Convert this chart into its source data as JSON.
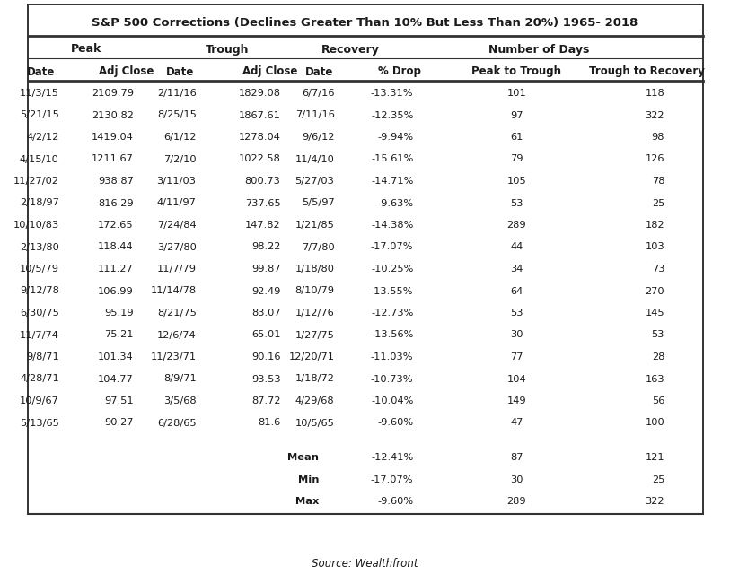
{
  "title": "S&P 500 Corrections (Declines Greater Than 10% But Less Than 20%) 1965- 2018",
  "source": "Source: Wealthfront",
  "rows": [
    [
      "11/3/15",
      "2109.79",
      "2/11/16",
      "1829.08",
      "6/7/16",
      "-13.31%",
      "101",
      "118"
    ],
    [
      "5/21/15",
      "2130.82",
      "8/25/15",
      "1867.61",
      "7/11/16",
      "-12.35%",
      "97",
      "322"
    ],
    [
      "4/2/12",
      "1419.04",
      "6/1/12",
      "1278.04",
      "9/6/12",
      "-9.94%",
      "61",
      "98"
    ],
    [
      "4/15/10",
      "1211.67",
      "7/2/10",
      "1022.58",
      "11/4/10",
      "-15.61%",
      "79",
      "126"
    ],
    [
      "11/27/02",
      "938.87",
      "3/11/03",
      "800.73",
      "5/27/03",
      "-14.71%",
      "105",
      "78"
    ],
    [
      "2/18/97",
      "816.29",
      "4/11/97",
      "737.65",
      "5/5/97",
      "-9.63%",
      "53",
      "25"
    ],
    [
      "10/10/83",
      "172.65",
      "7/24/84",
      "147.82",
      "1/21/85",
      "-14.38%",
      "289",
      "182"
    ],
    [
      "2/13/80",
      "118.44",
      "3/27/80",
      "98.22",
      "7/7/80",
      "-17.07%",
      "44",
      "103"
    ],
    [
      "10/5/79",
      "111.27",
      "11/7/79",
      "99.87",
      "1/18/80",
      "-10.25%",
      "34",
      "73"
    ],
    [
      "9/12/78",
      "106.99",
      "11/14/78",
      "92.49",
      "8/10/79",
      "-13.55%",
      "64",
      "270"
    ],
    [
      "6/30/75",
      "95.19",
      "8/21/75",
      "83.07",
      "1/12/76",
      "-12.73%",
      "53",
      "145"
    ],
    [
      "11/7/74",
      "75.21",
      "12/6/74",
      "65.01",
      "1/27/75",
      "-13.56%",
      "30",
      "53"
    ],
    [
      "9/8/71",
      "101.34",
      "11/23/71",
      "90.16",
      "12/20/71",
      "-11.03%",
      "77",
      "28"
    ],
    [
      "4/28/71",
      "104.77",
      "8/9/71",
      "93.53",
      "1/18/72",
      "-10.73%",
      "104",
      "163"
    ],
    [
      "10/9/67",
      "97.51",
      "3/5/68",
      "87.72",
      "4/29/68",
      "-10.04%",
      "149",
      "56"
    ],
    [
      "5/13/65",
      "90.27",
      "6/28/65",
      "81.6",
      "10/5/65",
      "-9.60%",
      "47",
      "100"
    ]
  ],
  "summary": [
    [
      "Mean",
      "-12.41%",
      "87",
      "121"
    ],
    [
      "Min",
      "-17.07%",
      "30",
      "25"
    ],
    [
      "Max",
      "-9.60%",
      "289",
      "322"
    ]
  ],
  "background_color": "#ffffff",
  "text_color": "#1a1a1a",
  "border_color": "#333333"
}
